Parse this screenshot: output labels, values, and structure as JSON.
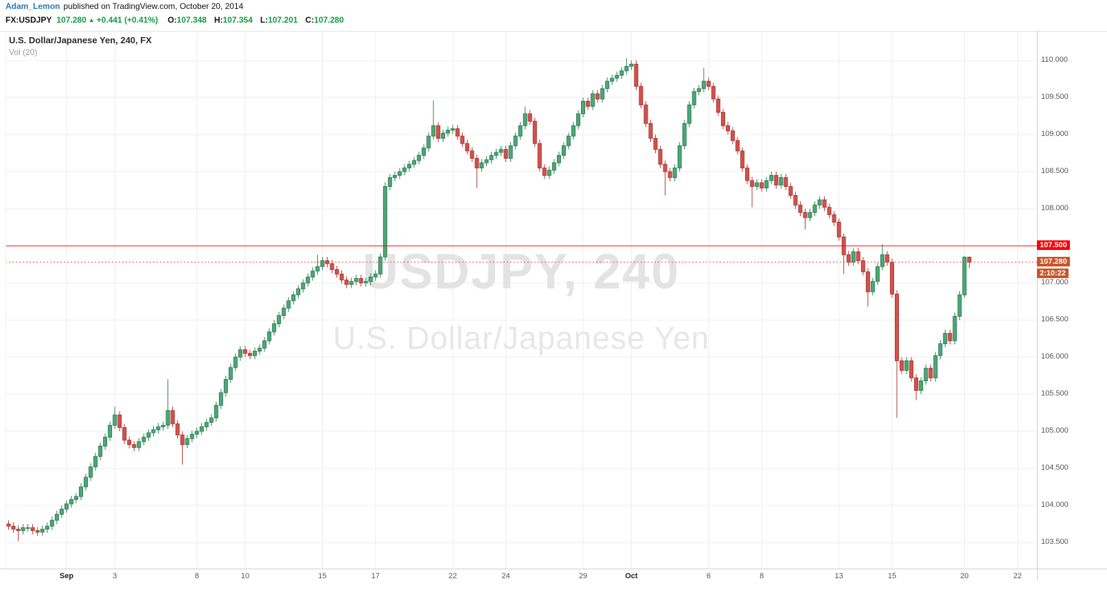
{
  "colors": {
    "link_blue": "#2a7ab0",
    "quote_green": "#0f9d3f"
  },
  "header": {
    "author": "Adam_Lemon",
    "published_text": "published on TradingView.com, October 20, 2014",
    "symbol": "FX:USDJPY",
    "last_price": "107.280",
    "arrow": "▲",
    "change": "+0.441 (+0.41%)",
    "ohlc": [
      {
        "label": "O:",
        "value": "107.348"
      },
      {
        "label": "H:",
        "value": "107.354"
      },
      {
        "label": "L:",
        "value": "107.201"
      },
      {
        "label": "C:",
        "value": "107.280"
      }
    ]
  },
  "legend": {
    "title": "U.S. Dollar/Japanese Yen, 240, FX",
    "indicator": "Vol (20)"
  },
  "watermark": {
    "line1": "USDJPY, 240",
    "line2": "U.S. Dollar/Japanese Yen"
  },
  "price_scale": {
    "labels": [
      "110.000",
      "109.500",
      "109.000",
      "108.500",
      "108.000",
      "107.500",
      "107.000",
      "106.500",
      "106.000",
      "105.500",
      "105.000",
      "104.500",
      "104.000",
      "103.500"
    ]
  },
  "time_scale": {
    "items": [
      {
        "label": "Sep",
        "i": 12,
        "strong": true
      },
      {
        "label": "3",
        "i": 22,
        "strong": false
      },
      {
        "label": "8",
        "i": 39,
        "strong": false
      },
      {
        "label": "10",
        "i": 49,
        "strong": false
      },
      {
        "label": "15",
        "i": 65,
        "strong": false
      },
      {
        "label": "17",
        "i": 76,
        "strong": false
      },
      {
        "label": "22",
        "i": 92,
        "strong": false
      },
      {
        "label": "24",
        "i": 103,
        "strong": false
      },
      {
        "label": "29",
        "i": 119,
        "strong": false
      },
      {
        "label": "Oct",
        "i": 129,
        "strong": true
      },
      {
        "label": "6",
        "i": 145,
        "strong": false
      },
      {
        "label": "8",
        "i": 156,
        "strong": false
      },
      {
        "label": "13",
        "i": 172,
        "strong": false
      },
      {
        "label": "15",
        "i": 183,
        "strong": false
      },
      {
        "label": "20",
        "i": 198,
        "strong": false
      },
      {
        "label": "22",
        "i": 209,
        "strong": false
      }
    ]
  },
  "chart_data": {
    "type": "candlestick",
    "symbol": "FX:USDJPY",
    "interval_minutes": 240,
    "title": "U.S. Dollar/Japanese Yen, 240, FX",
    "ylim": [
      103.148,
      110.389
    ],
    "grid": true,
    "up_color": "#4ea776",
    "up_border": "#2f7d56",
    "down_color": "#d6514c",
    "down_border": "#a93832",
    "first_open": 103.75,
    "default_wick": 0.05,
    "closes": [
      103.72,
      103.68,
      103.66,
      103.7,
      103.7,
      103.66,
      103.64,
      103.68,
      103.72,
      103.8,
      103.88,
      103.95,
      104.02,
      104.08,
      104.12,
      104.25,
      104.38,
      104.52,
      104.66,
      104.8,
      104.92,
      105.08,
      105.22,
      105.05,
      104.88,
      104.82,
      104.78,
      104.86,
      104.92,
      104.98,
      105.02,
      105.06,
      105.08,
      105.28,
      105.1,
      104.95,
      104.82,
      104.9,
      104.96,
      105.0,
      105.06,
      105.12,
      105.18,
      105.35,
      105.52,
      105.7,
      105.86,
      106.0,
      106.1,
      106.05,
      106.02,
      106.08,
      106.12,
      106.22,
      106.34,
      106.45,
      106.56,
      106.66,
      106.76,
      106.84,
      106.92,
      107.0,
      107.08,
      107.16,
      107.22,
      107.3,
      107.26,
      107.18,
      107.12,
      107.04,
      106.98,
      107.02,
      107.06,
      107.0,
      107.02,
      107.08,
      107.12,
      107.35,
      108.3,
      108.42,
      108.45,
      108.5,
      108.55,
      108.6,
      108.65,
      108.72,
      108.82,
      108.98,
      109.12,
      108.95,
      109.02,
      109.06,
      109.08,
      108.98,
      108.88,
      108.78,
      108.68,
      108.55,
      108.62,
      108.66,
      108.72,
      108.76,
      108.8,
      108.68,
      108.85,
      108.98,
      109.12,
      109.28,
      109.18,
      108.88,
      108.55,
      108.45,
      108.52,
      108.62,
      108.72,
      108.85,
      108.98,
      109.12,
      109.28,
      109.45,
      109.38,
      109.55,
      109.48,
      109.62,
      109.72,
      109.76,
      109.8,
      109.86,
      109.92,
      109.95,
      109.65,
      109.4,
      109.15,
      108.95,
      108.8,
      108.6,
      108.5,
      108.42,
      108.55,
      108.85,
      109.15,
      109.4,
      109.58,
      109.62,
      109.72,
      109.65,
      109.48,
      109.3,
      109.12,
      109.05,
      108.92,
      108.78,
      108.55,
      108.38,
      108.3,
      108.35,
      108.28,
      108.38,
      108.45,
      108.32,
      108.42,
      108.3,
      108.18,
      108.05,
      107.95,
      107.88,
      107.95,
      108.05,
      108.12,
      108.02,
      107.92,
      107.82,
      107.62,
      107.38,
      107.28,
      107.42,
      107.3,
      107.15,
      106.88,
      107.02,
      107.22,
      107.38,
      107.28,
      106.85,
      105.95,
      105.82,
      105.95,
      105.72,
      105.55,
      105.68,
      105.85,
      105.72,
      106.02,
      106.18,
      106.32,
      106.22,
      106.55,
      106.839,
      107.348,
      107.28
    ],
    "overrides": {
      "2": {
        "low": 103.52
      },
      "22": {
        "high": 105.33
      },
      "33": {
        "high": 105.7
      },
      "36": {
        "low": 104.55
      },
      "64": {
        "high": 107.38
      },
      "78": {
        "high": 108.36,
        "low": 107.3
      },
      "88": {
        "high": 109.46
      },
      "97": {
        "low": 108.28
      },
      "107": {
        "high": 109.38
      },
      "128": {
        "high": 110.03
      },
      "136": {
        "low": 108.18
      },
      "144": {
        "high": 109.9
      },
      "154": {
        "low": 108.02
      },
      "165": {
        "low": 107.72
      },
      "173": {
        "low": 107.12
      },
      "178": {
        "low": 106.68
      },
      "181": {
        "high": 107.52
      },
      "184": {
        "low": 105.18
      },
      "188": {
        "low": 105.42
      },
      "198": {
        "high": 107.36,
        "low": 106.8
      },
      "199": {
        "open": 107.348,
        "high": 107.354,
        "low": 107.201,
        "close": 107.28
      }
    },
    "lines": [
      {
        "price": 107.5,
        "label": "107.500",
        "style": "solid",
        "color": "#ff0000",
        "badge_bg": "#ff0000"
      },
      {
        "price": 107.28,
        "label": "107.280",
        "style": "dotted",
        "color": "#f0402f",
        "badge_bg": "#cc5427"
      }
    ],
    "countdown": {
      "text": "2:10:22",
      "price": 107.28,
      "badge_bg": "#cc5427"
    }
  }
}
